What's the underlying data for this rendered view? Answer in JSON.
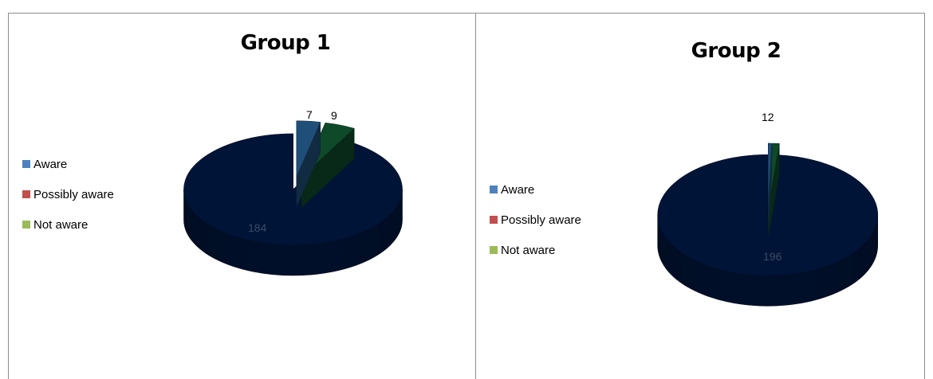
{
  "chart_data": [
    {
      "type": "pie",
      "title": "Group 1",
      "categories": [
        "Aware",
        "Possibly aware",
        "Not aware"
      ],
      "values": [
        7,
        9,
        184
      ],
      "data_labels": [
        "7",
        "9",
        "184"
      ],
      "legend_colors": [
        "#4f81bd",
        "#c0504d",
        "#9bbb59"
      ],
      "slice_colors": [
        "#1f4e79",
        "#0e4a2a",
        "#001437"
      ],
      "legend_position": "left",
      "style": "3d-exploded"
    },
    {
      "type": "pie",
      "title": "Group 2",
      "categories": [
        "Aware",
        "Possibly aware",
        "Not aware"
      ],
      "values": [
        1,
        2,
        196
      ],
      "data_labels": [
        "1",
        "2",
        "196"
      ],
      "legend_colors": [
        "#4f81bd",
        "#c0504d",
        "#9bbb59"
      ],
      "slice_colors": [
        "#1f4e79",
        "#0e4a2a",
        "#001437"
      ],
      "legend_position": "left",
      "style": "3d-exploded"
    }
  ]
}
